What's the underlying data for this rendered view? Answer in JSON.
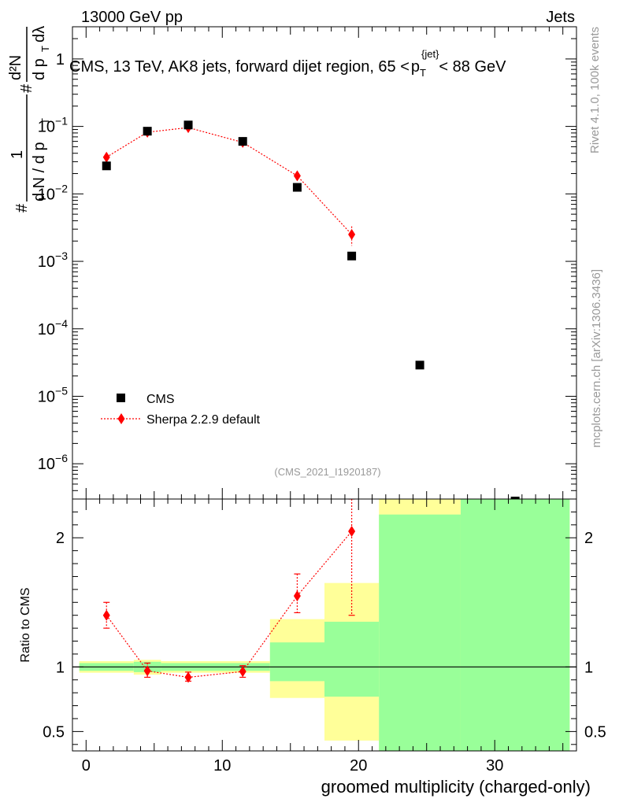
{
  "header": {
    "energy_label": "13000 GeV pp",
    "process_label": "Jets",
    "right_vertical_top": "Rivet 4.1.0,  100k events",
    "right_vertical_bottom": "mcplots.cern.ch [arXiv:1306.3436]"
  },
  "colors": {
    "data": "#000000",
    "mc": "#ff0000",
    "band_inner": "#99ff99",
    "band_outer": "#ffff99",
    "watermark": "#999999"
  },
  "chart_data": [
    {
      "id": "main",
      "type": "scatter",
      "title": "CMS, 13 TeV, AK8 jets, forward dijet region, 65 < p_T^{jet} < 88 GeV",
      "title_parts": {
        "prefix": "CMS, 13 TeV, AK8 jets, forward dijet region, 65 <",
        "p": "p",
        "sub": "T",
        "sup": "{jet}",
        "suffix": "< 88 GeV"
      },
      "ylabel_parts": {
        "hash1": "#",
        "one": "1",
        "dN": "d N / d p",
        "T1": "T",
        "hash2": "#",
        "dp": "d p",
        "T2": "T",
        "dlam": "dλ",
        "d2N": "d²N"
      },
      "yscale": "log",
      "ylim": [
        3e-07,
        3
      ],
      "xlim": [
        -1,
        36
      ],
      "yticks": [
        {
          "value": 1,
          "label_base": "1",
          "label_exp": ""
        },
        {
          "value": 0.1,
          "label_base": "10",
          "label_exp": "−1"
        },
        {
          "value": 0.01,
          "label_base": "10",
          "label_exp": "−2"
        },
        {
          "value": 0.001,
          "label_base": "10",
          "label_exp": "−3"
        },
        {
          "value": 0.0001,
          "label_base": "10",
          "label_exp": "−4"
        },
        {
          "value": 1e-05,
          "label_base": "10",
          "label_exp": "−5"
        },
        {
          "value": 1e-06,
          "label_base": "10",
          "label_exp": "−6"
        }
      ],
      "series": [
        {
          "name": "CMS",
          "marker": "square",
          "points": [
            {
              "x": 1.5,
              "y": 0.026
            },
            {
              "x": 4.5,
              "y": 0.085
            },
            {
              "x": 7.5,
              "y": 0.105
            },
            {
              "x": 11.5,
              "y": 0.06
            },
            {
              "x": 15.5,
              "y": 0.0125
            },
            {
              "x": 19.5,
              "y": 0.0012
            },
            {
              "x": 24.5,
              "y": 2.9e-05
            },
            {
              "x": 31.5,
              "y": 2.6e-07
            }
          ]
        },
        {
          "name": "Sherpa 2.2.9 default",
          "marker": "diamond",
          "line": "dotted",
          "points": [
            {
              "x": 1.5,
              "y": 0.035,
              "err": 0.003
            },
            {
              "x": 4.5,
              "y": 0.082,
              "err": 0.004
            },
            {
              "x": 7.5,
              "y": 0.096,
              "err": 0.005
            },
            {
              "x": 11.5,
              "y": 0.058,
              "err": 0.003
            },
            {
              "x": 15.5,
              "y": 0.0185,
              "err": 0.0015
            },
            {
              "x": 19.5,
              "y": 0.0025,
              "err": 0.0008
            }
          ]
        }
      ],
      "legend": {
        "position": "bottom-left",
        "entries": [
          "CMS",
          "Sherpa 2.2.9 default"
        ]
      },
      "watermark": "(CMS_2021_I1920187)"
    },
    {
      "id": "ratio",
      "type": "scatter",
      "ylabel": "Ratio to CMS",
      "xlabel": "groomed multiplicity (charged-only)",
      "ylim": [
        0.35,
        2.3
      ],
      "xlim": [
        -1,
        36
      ],
      "xticks": [
        {
          "value": 0,
          "label": "0"
        },
        {
          "value": 10,
          "label": "10"
        },
        {
          "value": 20,
          "label": "20"
        },
        {
          "value": 30,
          "label": "30"
        }
      ],
      "yticks": [
        {
          "value": 2,
          "label": "2"
        },
        {
          "value": 1,
          "label": "1"
        },
        {
          "value": 0.5,
          "label": "0.5"
        }
      ],
      "bands": [
        {
          "x0": -0.5,
          "x1": 3.5,
          "outer_lo": 0.955,
          "outer_hi": 1.045,
          "inner_lo": 0.97,
          "inner_hi": 1.03
        },
        {
          "x0": 3.5,
          "x1": 5.5,
          "outer_lo": 0.94,
          "outer_hi": 1.055,
          "inner_lo": 0.96,
          "inner_hi": 1.04
        },
        {
          "x0": 5.5,
          "x1": 13.5,
          "outer_lo": 0.955,
          "outer_hi": 1.045,
          "inner_lo": 0.97,
          "inner_hi": 1.03
        },
        {
          "x0": 13.5,
          "x1": 17.5,
          "outer_lo": 0.76,
          "outer_hi": 1.37,
          "inner_lo": 0.89,
          "inner_hi": 1.19
        },
        {
          "x0": 17.5,
          "x1": 21.5,
          "outer_lo": 0.43,
          "outer_hi": 1.65,
          "inner_lo": 0.77,
          "inner_hi": 1.35
        },
        {
          "x0": 21.5,
          "x1": 27.5,
          "outer_lo": 0.3,
          "outer_hi": 2.45,
          "inner_lo": 0.3,
          "inner_hi": 2.18
        },
        {
          "x0": 27.5,
          "x1": 35.5,
          "outer_lo": 0.3,
          "outer_hi": 2.45,
          "inner_lo": 0.3,
          "inner_hi": 2.45
        }
      ],
      "reference": 1,
      "series": [
        {
          "name": "Sherpa 2.2.9 default",
          "marker": "diamond",
          "line": "dotted",
          "points": [
            {
              "x": 1.5,
              "y": 1.4,
              "lo": 1.3,
              "hi": 1.5
            },
            {
              "x": 4.5,
              "y": 0.97,
              "lo": 0.92,
              "hi": 1.03
            },
            {
              "x": 7.5,
              "y": 0.92,
              "lo": 0.89,
              "hi": 0.96
            },
            {
              "x": 11.5,
              "y": 0.965,
              "lo": 0.92,
              "hi": 1.01
            },
            {
              "x": 15.5,
              "y": 1.55,
              "lo": 1.42,
              "hi": 1.72
            },
            {
              "x": 19.5,
              "y": 2.05,
              "lo": 1.4,
              "hi": 2.3
            }
          ]
        }
      ]
    }
  ]
}
